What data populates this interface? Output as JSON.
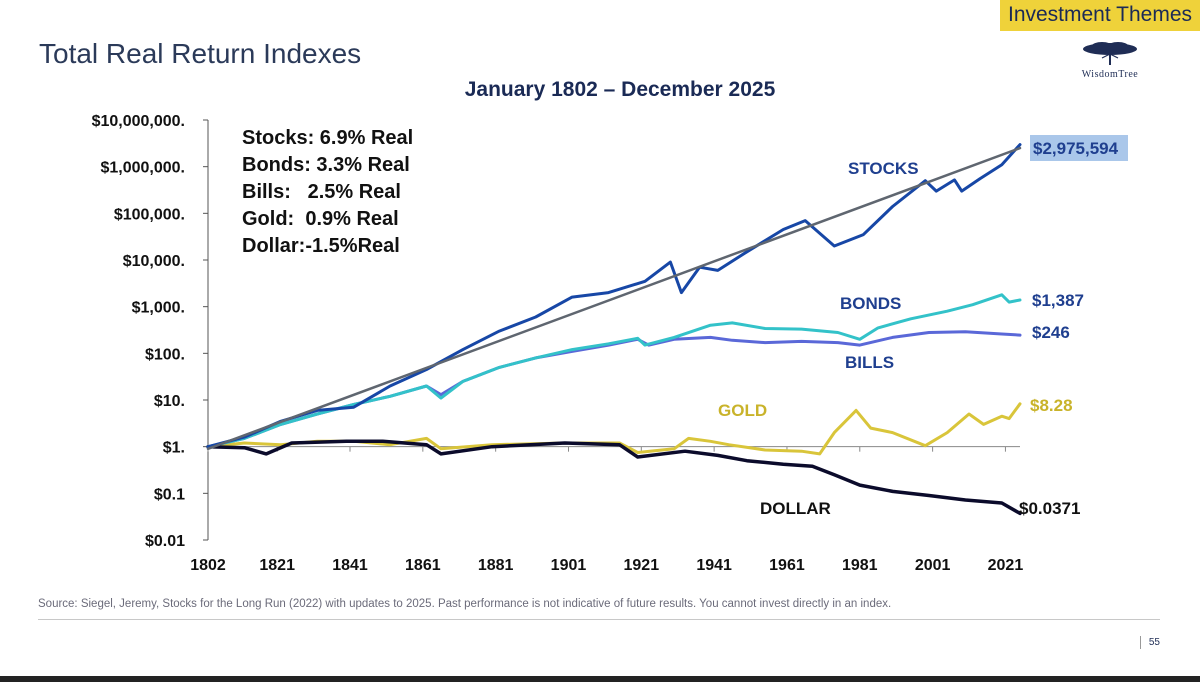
{
  "header": {
    "theme_tag": "Investment Themes",
    "title": "Total Real Return Indexes",
    "logo_text": "WisdomTree"
  },
  "footer": {
    "source": "Source: Siegel, Jeremy, Stocks for the Long Run (2022) with updates to 2025. Past performance is not indicative of future results. You cannot invest directly in an index.",
    "page_number": "55"
  },
  "colors": {
    "stocks": "#1747a6",
    "trend": "#5f6670",
    "bonds": "#33c2c9",
    "bills": "#5a68d8",
    "gold": "#d9c53a",
    "dollar": "#0b0b2b",
    "label_blue": "#1f3f8f",
    "label_gold": "#c9b32a",
    "highlight": "#aac7ea"
  },
  "chart_data": {
    "type": "line",
    "title": "January 1802 – December 2025",
    "xlabel": "",
    "ylabel": "",
    "y_scale": "log",
    "xlim": [
      1802,
      2025
    ],
    "ylim": [
      0.01,
      10000000
    ],
    "x_ticks": [
      "1802",
      "1821",
      "1841",
      "1861",
      "1881",
      "1901",
      "1921",
      "1941",
      "1961",
      "1981",
      "2001",
      "2021"
    ],
    "y_ticks": [
      {
        "value": 10000000,
        "label": "$10,000,000."
      },
      {
        "value": 1000000,
        "label": "$1,000,000."
      },
      {
        "value": 100000,
        "label": "$100,000."
      },
      {
        "value": 10000,
        "label": "$10,000."
      },
      {
        "value": 1000,
        "label": "$1,000."
      },
      {
        "value": 100,
        "label": "$100."
      },
      {
        "value": 10,
        "label": "$10."
      },
      {
        "value": 1,
        "label": "$1."
      },
      {
        "value": 0.1,
        "label": "$0.1"
      },
      {
        "value": 0.01,
        "label": "$0.01"
      }
    ],
    "stats": [
      {
        "text": "Stocks: 6.9% Real"
      },
      {
        "text": "Bonds: 3.3% Real"
      },
      {
        "text": "Bills:   2.5% Real"
      },
      {
        "text": "Gold:  0.9% Real"
      },
      {
        "text": "Dollar:-1.5%Real"
      }
    ],
    "series": [
      {
        "name": "STOCKS",
        "end_label": "$2,975,594",
        "color_key": "stocks",
        "points": [
          [
            1802,
            1
          ],
          [
            1812,
            1.6
          ],
          [
            1822,
            3.5
          ],
          [
            1832,
            6
          ],
          [
            1842,
            7
          ],
          [
            1852,
            20
          ],
          [
            1862,
            45
          ],
          [
            1872,
            120
          ],
          [
            1882,
            300
          ],
          [
            1892,
            600
          ],
          [
            1902,
            1600
          ],
          [
            1912,
            2000
          ],
          [
            1922,
            3500
          ],
          [
            1929,
            9000
          ],
          [
            1932,
            2000
          ],
          [
            1937,
            7000
          ],
          [
            1942,
            6000
          ],
          [
            1950,
            15000
          ],
          [
            1960,
            45000
          ],
          [
            1966,
            70000
          ],
          [
            1974,
            20000
          ],
          [
            1982,
            35000
          ],
          [
            1990,
            140000
          ],
          [
            1999,
            500000
          ],
          [
            2002,
            300000
          ],
          [
            2007,
            520000
          ],
          [
            2009,
            300000
          ],
          [
            2014,
            550000
          ],
          [
            2020,
            1100000
          ],
          [
            2025,
            2975594
          ]
        ]
      },
      {
        "name": "BONDS",
        "end_label": "$1,387",
        "color_key": "bonds",
        "points": [
          [
            1802,
            1
          ],
          [
            1812,
            1.5
          ],
          [
            1822,
            3
          ],
          [
            1832,
            5
          ],
          [
            1842,
            8
          ],
          [
            1852,
            12
          ],
          [
            1862,
            20
          ],
          [
            1866,
            11
          ],
          [
            1872,
            25
          ],
          [
            1882,
            50
          ],
          [
            1892,
            80
          ],
          [
            1902,
            120
          ],
          [
            1912,
            160
          ],
          [
            1920,
            210
          ],
          [
            1922,
            150
          ],
          [
            1930,
            220
          ],
          [
            1940,
            400
          ],
          [
            1946,
            450
          ],
          [
            1955,
            340
          ],
          [
            1965,
            330
          ],
          [
            1975,
            280
          ],
          [
            1981,
            200
          ],
          [
            1986,
            350
          ],
          [
            1995,
            550
          ],
          [
            2005,
            800
          ],
          [
            2012,
            1100
          ],
          [
            2020,
            1800
          ],
          [
            2022,
            1250
          ],
          [
            2025,
            1387
          ]
        ]
      },
      {
        "name": "BILLS",
        "end_label": "$246",
        "color_key": "bills",
        "points": [
          [
            1802,
            1
          ],
          [
            1812,
            1.5
          ],
          [
            1822,
            3
          ],
          [
            1832,
            5
          ],
          [
            1842,
            8
          ],
          [
            1852,
            12
          ],
          [
            1862,
            20
          ],
          [
            1866,
            13
          ],
          [
            1872,
            25
          ],
          [
            1882,
            50
          ],
          [
            1892,
            80
          ],
          [
            1902,
            110
          ],
          [
            1912,
            150
          ],
          [
            1920,
            200
          ],
          [
            1923,
            150
          ],
          [
            1930,
            200
          ],
          [
            1940,
            220
          ],
          [
            1946,
            190
          ],
          [
            1955,
            170
          ],
          [
            1965,
            180
          ],
          [
            1975,
            170
          ],
          [
            1981,
            150
          ],
          [
            1990,
            220
          ],
          [
            2000,
            280
          ],
          [
            2010,
            290
          ],
          [
            2020,
            260
          ],
          [
            2025,
            246
          ]
        ]
      },
      {
        "name": "GOLD",
        "end_label": "$8.28",
        "color_key": "gold",
        "points": [
          [
            1802,
            1
          ],
          [
            1812,
            1.2
          ],
          [
            1822,
            1.1
          ],
          [
            1832,
            1.3
          ],
          [
            1842,
            1.3
          ],
          [
            1852,
            1.1
          ],
          [
            1862,
            1.5
          ],
          [
            1866,
            0.9
          ],
          [
            1880,
            1.1
          ],
          [
            1900,
            1.2
          ],
          [
            1915,
            1.2
          ],
          [
            1920,
            0.75
          ],
          [
            1930,
            0.9
          ],
          [
            1934,
            1.5
          ],
          [
            1940,
            1.3
          ],
          [
            1945,
            1.1
          ],
          [
            1955,
            0.85
          ],
          [
            1965,
            0.8
          ],
          [
            1970,
            0.7
          ],
          [
            1974,
            2
          ],
          [
            1980,
            6
          ],
          [
            1984,
            2.5
          ],
          [
            1990,
            2
          ],
          [
            1999,
            1.05
          ],
          [
            2005,
            2
          ],
          [
            2011,
            5
          ],
          [
            2015,
            3
          ],
          [
            2020,
            4.5
          ],
          [
            2022,
            4
          ],
          [
            2025,
            8.28
          ]
        ]
      },
      {
        "name": "DOLLAR",
        "end_label": "$0.0371",
        "color_key": "dollar",
        "points": [
          [
            1802,
            1
          ],
          [
            1812,
            0.95
          ],
          [
            1818,
            0.7
          ],
          [
            1825,
            1.2
          ],
          [
            1840,
            1.3
          ],
          [
            1850,
            1.3
          ],
          [
            1862,
            1.1
          ],
          [
            1866,
            0.7
          ],
          [
            1880,
            1
          ],
          [
            1900,
            1.2
          ],
          [
            1915,
            1.1
          ],
          [
            1920,
            0.6
          ],
          [
            1933,
            0.8
          ],
          [
            1942,
            0.65
          ],
          [
            1950,
            0.5
          ],
          [
            1960,
            0.42
          ],
          [
            1968,
            0.38
          ],
          [
            1974,
            0.25
          ],
          [
            1981,
            0.15
          ],
          [
            1990,
            0.11
          ],
          [
            2000,
            0.09
          ],
          [
            2010,
            0.072
          ],
          [
            2020,
            0.062
          ],
          [
            2025,
            0.0371
          ]
        ]
      },
      {
        "name": "",
        "end_label": "",
        "color_key": "trend",
        "points": [
          [
            1802,
            0.9
          ],
          [
            2025,
            2500000
          ]
        ]
      }
    ]
  }
}
